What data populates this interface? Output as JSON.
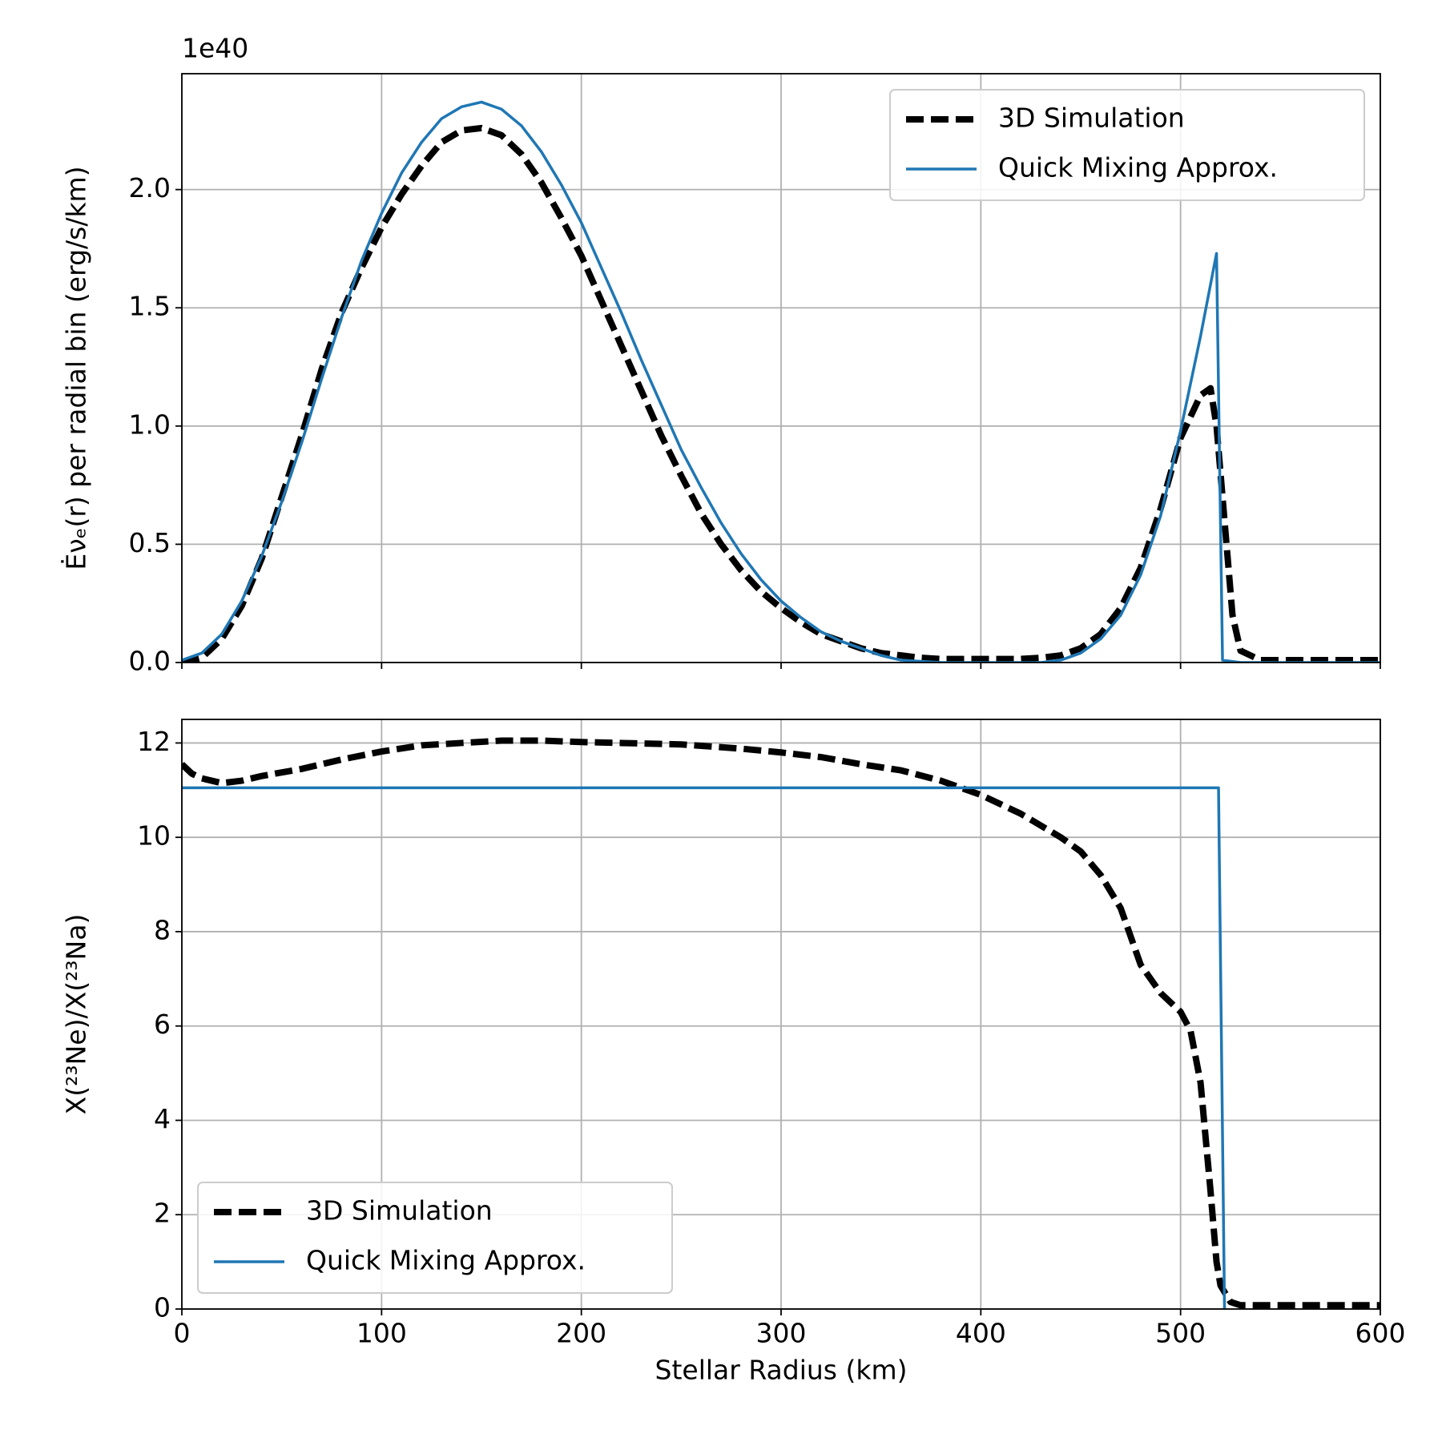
{
  "chart_data": [
    {
      "type": "line",
      "ylabel": "Ėνₑ(r) per radial bin (erg/s/km)",
      "y_offset_label": "1e40",
      "xlim": [
        0,
        600
      ],
      "xticks": [
        0,
        100,
        200,
        300,
        400,
        500,
        600
      ],
      "show_xtick_labels": false,
      "ylim": [
        0,
        2.49
      ],
      "yticks": [
        {
          "value": 0,
          "label": "0.0"
        },
        0.5,
        {
          "value": 1,
          "label": "1.0"
        },
        1.5,
        {
          "value": 2,
          "label": "2.0"
        }
      ],
      "grid": true,
      "legend": "upper right",
      "series": [
        {
          "name": "3D Simulation",
          "color": "#000000",
          "style": "dashed",
          "x": [
            0,
            10,
            20,
            30,
            40,
            50,
            60,
            70,
            80,
            90,
            100,
            110,
            120,
            130,
            140,
            150,
            160,
            170,
            180,
            190,
            200,
            210,
            220,
            230,
            240,
            250,
            260,
            270,
            280,
            290,
            300,
            310,
            320,
            330,
            340,
            350,
            360,
            370,
            380,
            390,
            400,
            410,
            420,
            430,
            440,
            450,
            460,
            470,
            480,
            490,
            500,
            510,
            515,
            518,
            522,
            526,
            530,
            540,
            550,
            600
          ],
          "values": [
            0.0,
            0.02,
            0.1,
            0.24,
            0.44,
            0.7,
            0.96,
            1.24,
            1.48,
            1.67,
            1.84,
            1.98,
            2.1,
            2.2,
            2.25,
            2.26,
            2.23,
            2.15,
            2.03,
            1.88,
            1.72,
            1.53,
            1.34,
            1.15,
            0.96,
            0.79,
            0.63,
            0.5,
            0.39,
            0.3,
            0.23,
            0.17,
            0.12,
            0.09,
            0.06,
            0.04,
            0.03,
            0.02,
            0.015,
            0.015,
            0.015,
            0.015,
            0.015,
            0.02,
            0.03,
            0.06,
            0.12,
            0.23,
            0.4,
            0.65,
            0.95,
            1.13,
            1.16,
            1.0,
            0.6,
            0.2,
            0.05,
            0.01,
            0.01,
            0.01
          ]
        },
        {
          "name": "Quick Mixing Approx.",
          "color": "#1f77b4",
          "style": "solid",
          "x": [
            0,
            10,
            20,
            30,
            40,
            50,
            60,
            70,
            80,
            90,
            100,
            110,
            120,
            130,
            140,
            150,
            160,
            170,
            180,
            190,
            200,
            210,
            220,
            230,
            240,
            250,
            260,
            270,
            280,
            290,
            300,
            310,
            320,
            330,
            340,
            350,
            360,
            370,
            380,
            390,
            400,
            410,
            420,
            430,
            440,
            450,
            460,
            470,
            480,
            490,
            500,
            510,
            518,
            521,
            530,
            600
          ],
          "values": [
            0.01,
            0.04,
            0.12,
            0.26,
            0.45,
            0.68,
            0.93,
            1.2,
            1.46,
            1.7,
            1.9,
            2.07,
            2.2,
            2.3,
            2.35,
            2.37,
            2.34,
            2.27,
            2.16,
            2.02,
            1.86,
            1.67,
            1.48,
            1.28,
            1.09,
            0.9,
            0.74,
            0.59,
            0.46,
            0.35,
            0.26,
            0.19,
            0.13,
            0.09,
            0.06,
            0.03,
            0.01,
            0.005,
            0,
            0,
            0,
            0,
            0,
            0,
            0.01,
            0.04,
            0.1,
            0.2,
            0.37,
            0.62,
            0.98,
            1.38,
            1.73,
            0.01,
            0,
            0
          ]
        }
      ]
    },
    {
      "type": "line",
      "ylabel": "X(²³Ne)/X(²³Na)",
      "xlabel": "Stellar Radius (km)",
      "xlim": [
        0,
        600
      ],
      "xticks": [
        0,
        100,
        200,
        300,
        400,
        500,
        600
      ],
      "show_xtick_labels": true,
      "ylim": [
        0,
        12.5
      ],
      "yticks": [
        0,
        2,
        4,
        6,
        8,
        10,
        12
      ],
      "grid": true,
      "legend": "lower left",
      "series": [
        {
          "name": "3D Simulation",
          "color": "#000000",
          "style": "dashed",
          "x": [
            0,
            5,
            10,
            20,
            30,
            40,
            60,
            80,
            100,
            120,
            140,
            160,
            180,
            200,
            220,
            250,
            280,
            300,
            320,
            340,
            360,
            380,
            400,
            420,
            440,
            450,
            460,
            470,
            475,
            480,
            490,
            500,
            505,
            510,
            515,
            518,
            520,
            525,
            530,
            600
          ],
          "values": [
            11.55,
            11.35,
            11.25,
            11.15,
            11.2,
            11.3,
            11.45,
            11.65,
            11.82,
            11.95,
            12.0,
            12.05,
            12.05,
            12.02,
            12.0,
            11.97,
            11.88,
            11.8,
            11.7,
            11.55,
            11.42,
            11.2,
            10.9,
            10.5,
            10.0,
            9.7,
            9.2,
            8.5,
            7.9,
            7.3,
            6.7,
            6.3,
            5.9,
            4.8,
            2.5,
            1.0,
            0.5,
            0.15,
            0.08,
            0.08
          ]
        },
        {
          "name": "Quick Mixing Approx.",
          "color": "#1f77b4",
          "style": "solid",
          "x": [
            0,
            519,
            522
          ],
          "values": [
            11.05,
            11.05,
            0
          ]
        }
      ]
    }
  ]
}
